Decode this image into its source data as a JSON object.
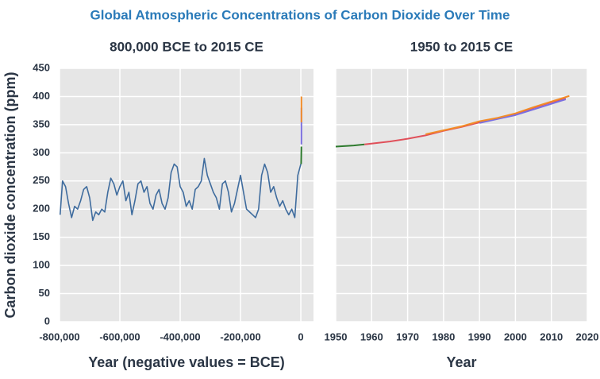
{
  "title": "Global Atmospheric Concentrations of Carbon Dioxide Over Time",
  "chart_data": [
    {
      "type": "line",
      "title": "800,000 BCE to 2015 CE",
      "xlabel": "Year (negative values = BCE)",
      "ylabel": "Carbon dioxide concentration (ppm)",
      "xlim": [
        -800000,
        42000
      ],
      "ylim": [
        0,
        450
      ],
      "xticks": [
        {
          "value": -800000,
          "label": "-800,000"
        },
        {
          "value": -600000,
          "label": "-600,000"
        },
        {
          "value": -400000,
          "label": "-400,000"
        },
        {
          "value": -200000,
          "label": "-200,000"
        },
        0
      ],
      "yticks": [
        0,
        50,
        100,
        150,
        200,
        250,
        300,
        350,
        400,
        450
      ],
      "grid": true,
      "show_ytick_labels": true,
      "series": [
        {
          "color": "#3f6c9e",
          "x": [
            -798000,
            -790000,
            -780000,
            -770000,
            -760000,
            -750000,
            -740000,
            -730000,
            -720000,
            -710000,
            -700000,
            -690000,
            -680000,
            -670000,
            -660000,
            -650000,
            -640000,
            -630000,
            -620000,
            -610000,
            -600000,
            -590000,
            -580000,
            -570000,
            -560000,
            -550000,
            -540000,
            -530000,
            -520000,
            -510000,
            -500000,
            -490000,
            -480000,
            -470000,
            -460000,
            -450000,
            -440000,
            -430000,
            -420000,
            -410000,
            -400000,
            -390000,
            -380000,
            -370000,
            -360000,
            -350000,
            -340000,
            -330000,
            -320000,
            -310000,
            -300000,
            -290000,
            -280000,
            -270000,
            -260000,
            -250000,
            -240000,
            -230000,
            -220000,
            -210000,
            -200000,
            -190000,
            -180000,
            -170000,
            -160000,
            -150000,
            -140000,
            -130000,
            -120000,
            -110000,
            -100000,
            -90000,
            -80000,
            -70000,
            -60000,
            -50000,
            -40000,
            -30000,
            -20000,
            -10000,
            -5000,
            0
          ],
          "values": [
            190,
            250,
            240,
            210,
            185,
            205,
            200,
            215,
            235,
            240,
            220,
            180,
            195,
            190,
            200,
            195,
            230,
            255,
            245,
            225,
            240,
            250,
            215,
            230,
            190,
            215,
            245,
            250,
            230,
            240,
            210,
            200,
            225,
            235,
            210,
            200,
            220,
            265,
            280,
            275,
            240,
            230,
            205,
            215,
            200,
            235,
            240,
            250,
            290,
            260,
            245,
            230,
            220,
            200,
            245,
            250,
            230,
            195,
            210,
            235,
            260,
            230,
            200,
            195,
            190,
            185,
            200,
            260,
            280,
            265,
            230,
            240,
            220,
            205,
            215,
            200,
            190,
            200,
            185,
            260,
            270,
            280
          ]
        },
        {
          "color": "#2d7a2d",
          "x": [
            1000,
            1950
          ],
          "values": [
            280,
            311
          ]
        },
        {
          "color": "#7b6fe0",
          "x": [
            1958,
            2005
          ],
          "values": [
            315,
            380
          ]
        },
        {
          "color": "#f28c28",
          "x": [
            1990,
            2015
          ],
          "values": [
            354,
            400
          ]
        }
      ]
    },
    {
      "type": "line",
      "title": "1950 to 2015 CE",
      "xlabel": "Year",
      "xlim": [
        1950,
        2020
      ],
      "ylim": [
        0,
        450
      ],
      "xticks": [
        1950,
        1960,
        1970,
        1980,
        1990,
        2000,
        2010,
        2020
      ],
      "yticks": [
        0,
        50,
        100,
        150,
        200,
        250,
        300,
        350,
        400,
        450
      ],
      "grid": true,
      "show_ytick_labels": false,
      "series": [
        {
          "color": "#2d7a2d",
          "x": [
            1950,
            1955,
            1958
          ],
          "values": [
            311,
            313,
            315
          ]
        },
        {
          "color": "#e0505a",
          "x": [
            1958,
            1965,
            1970,
            1975,
            1980,
            1985,
            1990,
            1995,
            2000,
            2005,
            2010,
            2014
          ],
          "values": [
            315,
            320,
            325,
            331,
            339,
            346,
            354,
            361,
            369,
            380,
            390,
            397
          ]
        },
        {
          "color": "#7b6fe0",
          "x": [
            1990,
            1995,
            2000,
            2005,
            2010,
            2014
          ],
          "values": [
            353,
            360,
            367,
            377,
            387,
            395
          ]
        },
        {
          "color": "#f28c28",
          "x": [
            1975,
            1980,
            1985,
            1990,
            1995,
            2000,
            2005,
            2010,
            2015
          ],
          "values": [
            333,
            340,
            347,
            356,
            362,
            370,
            381,
            391,
            401
          ]
        }
      ]
    }
  ]
}
